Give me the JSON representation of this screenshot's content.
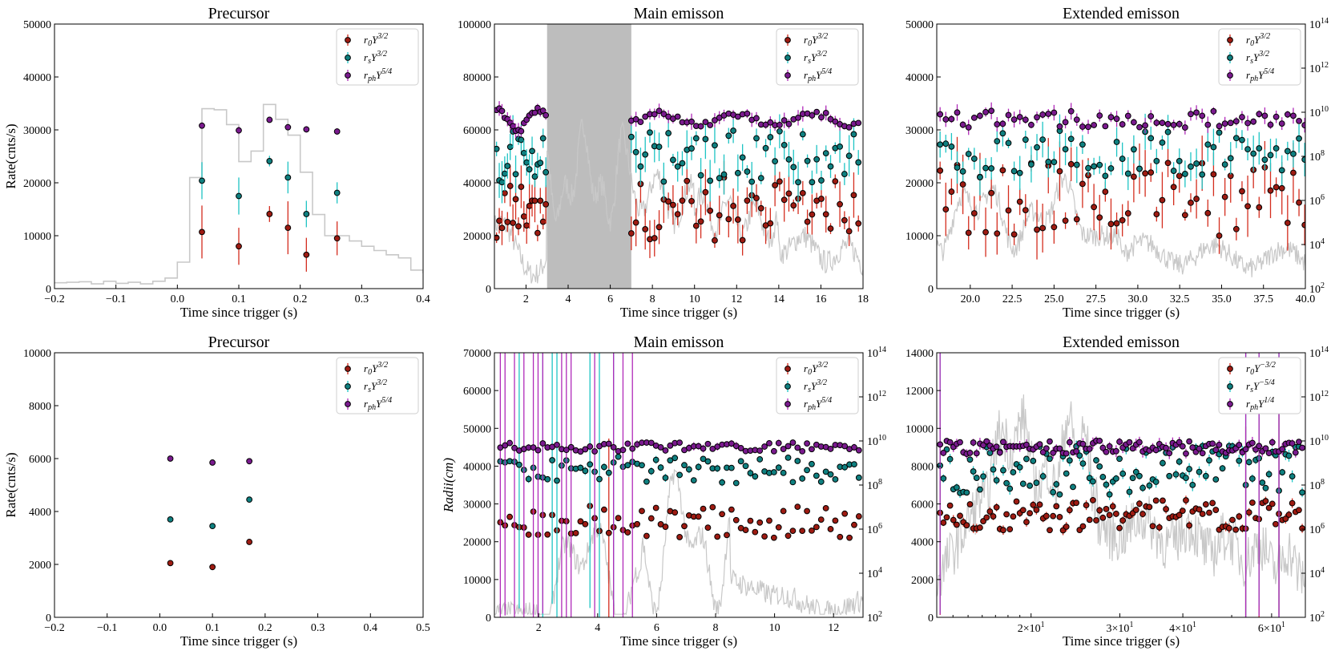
{
  "colors": {
    "r0": "#d42d1e",
    "rs": "#1ec4c4",
    "rph": "#b02ab9",
    "r0_fill": "#9e1b12",
    "rs_fill": "#0f8080",
    "rph_fill": "#7a1a8e",
    "light_curve": "#c8c8c8",
    "shade": "#bdbdbd"
  },
  "chart_data": [
    {
      "type": "scatter",
      "title": "Precursor",
      "xlabel": "Time since trigger (s)",
      "ylabel": "Rate(cnts/s)",
      "xlim": [
        -0.2,
        0.4
      ],
      "ylim": [
        0,
        50000
      ],
      "xticks": [
        "-0.2",
        "-0.1",
        "0.0",
        "0.1",
        "0.2",
        "0.3",
        "0.4"
      ],
      "yticks": [
        "0",
        "10000",
        "20000",
        "30000",
        "40000",
        "50000"
      ],
      "legend": [
        "r0Y3/2",
        "rsY3/2",
        "rphY5/4"
      ],
      "legend_position": "top-right",
      "light_curve": {
        "x": [
          -0.2,
          -0.18,
          -0.16,
          -0.14,
          -0.12,
          -0.1,
          -0.08,
          -0.06,
          -0.04,
          -0.02,
          0.0,
          0.02,
          0.04,
          0.06,
          0.08,
          0.1,
          0.12,
          0.14,
          0.16,
          0.18,
          0.2,
          0.22,
          0.24,
          0.26,
          0.28,
          0.3,
          0.32,
          0.34,
          0.36,
          0.38,
          0.4
        ],
        "y": [
          1100,
          1200,
          1300,
          900,
          1400,
          1000,
          1200,
          900,
          1400,
          2000,
          5000,
          21000,
          34000,
          33800,
          31000,
          24000,
          26000,
          34800,
          32000,
          29000,
          22000,
          14000,
          10000,
          10000,
          9000,
          8000,
          7200,
          6400,
          5800,
          3500,
          3000
        ]
      },
      "series": [
        {
          "name": "r0Y3/2",
          "x": [
            0.04,
            0.1,
            0.15,
            0.18,
            0.21,
            0.26
          ],
          "y": [
            10700,
            8000,
            14100,
            11500,
            6400,
            9500
          ],
          "err": [
            5000,
            3500,
            1500,
            5000,
            3200,
            3200
          ]
        },
        {
          "name": "rsY3/2",
          "x": [
            0.04,
            0.1,
            0.15,
            0.18,
            0.21,
            0.26
          ],
          "y": [
            20400,
            17500,
            24100,
            21000,
            14100,
            18100
          ],
          "err": [
            3500,
            3500,
            1000,
            3000,
            2500,
            2000
          ]
        },
        {
          "name": "rphY5/4",
          "x": [
            0.04,
            0.1,
            0.15,
            0.18,
            0.21,
            0.26
          ],
          "y": [
            30800,
            29900,
            31900,
            30500,
            30100,
            29700
          ],
          "err": [
            600,
            700,
            500,
            500,
            600,
            600
          ]
        }
      ]
    },
    {
      "type": "scatter",
      "title": "Main emisson",
      "xlabel": "Time since trigger (s)",
      "ylabel": "",
      "xlim": [
        0.5,
        18
      ],
      "ylim": [
        0,
        100000
      ],
      "xticks": [
        "2",
        "4",
        "6",
        "8",
        "10",
        "12",
        "14",
        "16",
        "18"
      ],
      "yticks": [
        "0",
        "20000",
        "40000",
        "60000",
        "80000",
        "100000"
      ],
      "shaded_region": [
        3,
        7
      ],
      "legend": [
        "r0Y3/2",
        "rsY3/2",
        "rphY5/4"
      ],
      "legend_position": "top-right"
    },
    {
      "type": "scatter",
      "title": "Extended emisson",
      "xlabel": "Time since trigger (s)",
      "ylabel": "",
      "xlim": [
        18,
        40
      ],
      "ylim": [
        0,
        50000
      ],
      "xticks": [
        "20.0",
        "22.5",
        "25.0",
        "27.5",
        "30.0",
        "32.5",
        "35.0",
        "37.5",
        "40.0"
      ],
      "yticks": [
        "0",
        "10000",
        "20000",
        "30000",
        "40000",
        "50000"
      ],
      "y2_log": true,
      "y2ticks": [
        "10^2",
        "10^4",
        "10^6",
        "10^8",
        "10^10",
        "10^12",
        "10^14"
      ],
      "legend": [
        "r0Y3/2",
        "rsY3/2",
        "rphY5/4"
      ],
      "legend_position": "top-right"
    },
    {
      "type": "scatter",
      "title": "Precursor",
      "xlabel": "Time since trigger (s)",
      "ylabel": "Rate(cnts/s)",
      "xlim": [
        -0.2,
        0.5
      ],
      "ylim": [
        0,
        10000
      ],
      "xticks": [
        "-0.2",
        "-0.1",
        "0.0",
        "0.1",
        "0.2",
        "0.3",
        "0.4",
        "0.5"
      ],
      "yticks": [
        "0",
        "2000",
        "4000",
        "6000",
        "8000",
        "10000"
      ],
      "legend": [
        "r0Y3/2",
        "rsY3/2",
        "rphY5/4"
      ],
      "legend_position": "top-right",
      "series": [
        {
          "name": "r0Y3/2",
          "x": [
            0.02,
            0.1,
            0.17
          ],
          "y": [
            2050,
            1900,
            2850
          ]
        },
        {
          "name": "rsY3/2",
          "x": [
            0.02,
            0.1,
            0.17
          ],
          "y": [
            3700,
            3450,
            4450
          ]
        },
        {
          "name": "rphY5/4",
          "x": [
            0.02,
            0.1,
            0.17
          ],
          "y": [
            6000,
            5850,
            5900
          ]
        }
      ]
    },
    {
      "type": "scatter",
      "title": "Main emisson",
      "xlabel": "Time since trigger (s)",
      "ylabel": "Radii(cm)",
      "xlim": [
        0.5,
        13
      ],
      "ylim": [
        0,
        70000
      ],
      "xticks": [
        "2",
        "4",
        "6",
        "8",
        "10",
        "12"
      ],
      "yticks": [
        "0",
        "10000",
        "20000",
        "30000",
        "40000",
        "50000",
        "60000",
        "70000"
      ],
      "y2_log": true,
      "y2ticks": [
        "10^2",
        "10^4",
        "10^6",
        "10^8",
        "10^10",
        "10^12",
        "10^14"
      ],
      "legend": [
        "r0Y3/2",
        "rsY3/2",
        "rphY5/4"
      ],
      "legend_position": "top-right"
    },
    {
      "type": "scatter",
      "title": "Extended emisson",
      "xlabel": "Time since trigger (s)",
      "ylabel": "",
      "x_log": true,
      "xlim": [
        13,
        70
      ],
      "ylim": [
        0,
        14000
      ],
      "xticks": [
        "2×10^1",
        "3×10^1",
        "4×10^1",
        "6×10^1"
      ],
      "yticks": [
        "0",
        "2000",
        "4000",
        "6000",
        "8000",
        "10000",
        "12000",
        "14000"
      ],
      "y2_log": true,
      "y2ticks": [
        "10^2",
        "10^4",
        "10^6",
        "10^8",
        "10^10",
        "10^12",
        "10^14"
      ],
      "legend": [
        "r0Y−3/2",
        "rsY−5/4",
        "rphY1/4"
      ],
      "legend_position": "top-right"
    }
  ]
}
